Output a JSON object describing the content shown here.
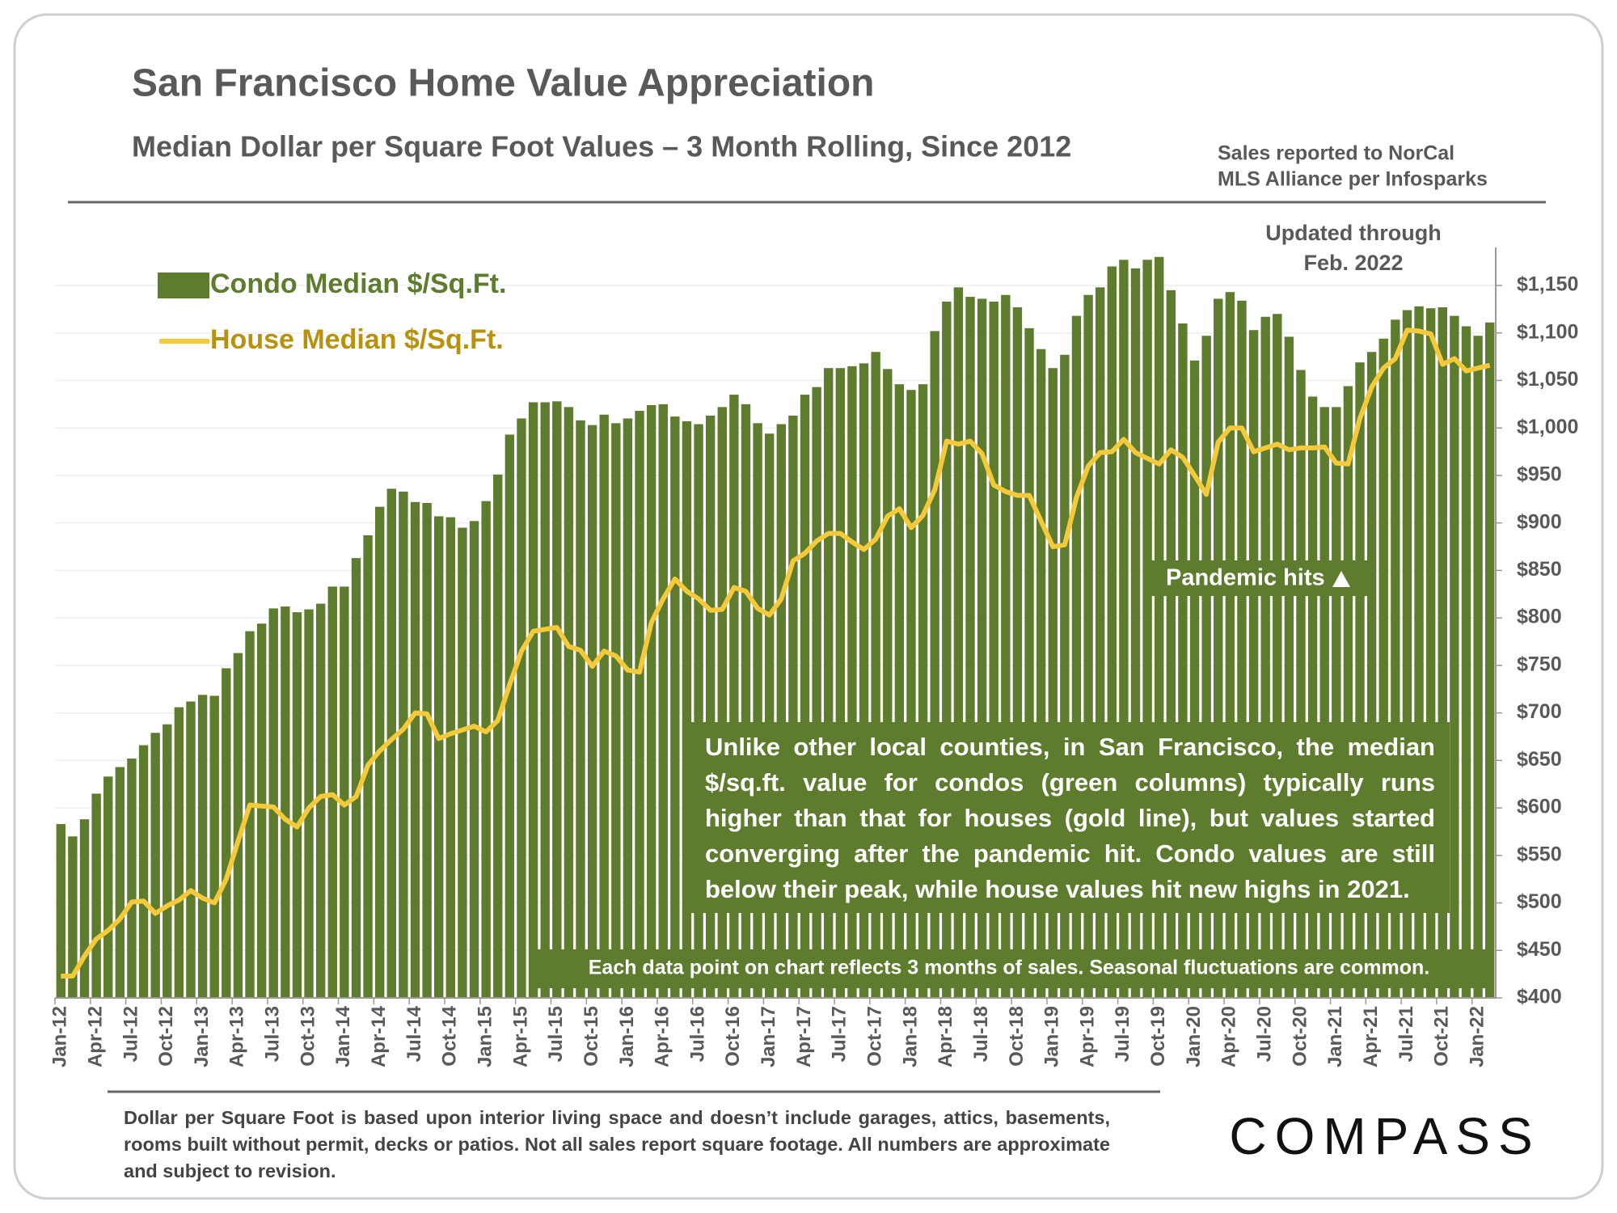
{
  "chart_data": {
    "type": "bar",
    "title": "San Francisco Home Value Appreciation",
    "subtitle": "Median Dollar per Square Foot Values – 3 Month Rolling, Since 2012",
    "source_note": [
      "Sales reported to NorCal",
      "MLS Alliance per Infosparks"
    ],
    "updated_note": [
      "Updated through",
      "Feb. 2022"
    ],
    "annotations": {
      "pandemic": "Pandemic hits",
      "explanation": "Unlike other local counties, in San Francisco, the median $/sq.ft. value for condos (green columns) typically runs higher than that for houses (gold line), but values started converging after the pandemic hit. Condo values are still below their peak, while house values hit new highs in 2021.",
      "data_note": "Each data point on chart reflects 3 months of sales. Seasonal fluctuations are common."
    },
    "footnote": "Dollar per Square Foot is based upon interior living space and doesn’t include garages, attics, basements, rooms built without permit, decks or patios. Not all sales report square footage. All numbers are approximate and subject to revision.",
    "brand": "COMPASS",
    "categories": [
      "Jan-12",
      null,
      null,
      "Apr-12",
      null,
      null,
      "Jul-12",
      null,
      null,
      "Oct-12",
      null,
      null,
      "Jan-13",
      null,
      null,
      "Apr-13",
      null,
      null,
      "Jul-13",
      null,
      null,
      "Oct-13",
      null,
      null,
      "Jan-14",
      null,
      null,
      "Apr-14",
      null,
      null,
      "Jul-14",
      null,
      null,
      "Oct-14",
      null,
      null,
      "Jan-15",
      null,
      null,
      "Apr-15",
      null,
      null,
      "Jul-15",
      null,
      null,
      "Oct-15",
      null,
      null,
      "Jan-16",
      null,
      null,
      "Apr-16",
      null,
      null,
      "Jul-16",
      null,
      null,
      "Oct-16",
      null,
      null,
      "Jan-17",
      null,
      null,
      "Apr-17",
      null,
      null,
      "Jul-17",
      null,
      null,
      "Oct-17",
      null,
      null,
      "Jan-18",
      null,
      null,
      "Apr-18",
      null,
      null,
      "Jul-18",
      null,
      null,
      "Oct-18",
      null,
      null,
      "Jan-19",
      null,
      null,
      "Apr-19",
      null,
      null,
      "Jul-19",
      null,
      null,
      "Oct-19",
      null,
      null,
      "Jan-20",
      null,
      null,
      "Apr-20",
      null,
      null,
      "Jul-20",
      null,
      null,
      "Oct-20",
      null,
      null,
      "Jan-21",
      null,
      null,
      "Apr-21",
      null,
      null,
      "Jul-21",
      null,
      null,
      "Oct-21",
      null,
      null,
      "Jan-22",
      null
    ],
    "series": [
      {
        "name": "Condo Median $/Sq.Ft.",
        "type": "bar",
        "color": "#5d7c2d",
        "values": [
          583,
          570,
          588,
          615,
          633,
          643,
          652,
          666,
          679,
          688,
          706,
          712,
          719,
          718,
          747,
          763,
          786,
          794,
          810,
          812,
          806,
          809,
          815,
          833,
          833,
          863,
          887,
          917,
          936,
          933,
          922,
          921,
          907,
          906,
          895,
          902,
          923,
          951,
          993,
          1010,
          1027,
          1027,
          1028,
          1022,
          1008,
          1003,
          1014,
          1005,
          1010,
          1018,
          1024,
          1025,
          1012,
          1007,
          1004,
          1013,
          1022,
          1035,
          1025,
          1005,
          994,
          1004,
          1013,
          1035,
          1043,
          1063,
          1063,
          1065,
          1068,
          1080,
          1062,
          1046,
          1040,
          1046,
          1102,
          1133,
          1148,
          1138,
          1136,
          1133,
          1140,
          1127,
          1105,
          1083,
          1063,
          1077,
          1118,
          1140,
          1148,
          1170,
          1177,
          1168,
          1177,
          1180,
          1145,
          1110,
          1071,
          1097,
          1136,
          1143,
          1134,
          1103,
          1117,
          1120,
          1096,
          1061,
          1033,
          1022,
          1022,
          1044,
          1069,
          1080,
          1094,
          1114,
          1124,
          1128,
          1126,
          1127,
          1118,
          1107,
          1097,
          1111
        ]
      },
      {
        "name": "House Median $/Sq.Ft.",
        "type": "line",
        "color": "#f5c93c",
        "values": [
          423,
          423,
          444,
          462,
          471,
          483,
          501,
          502,
          489,
          497,
          503,
          513,
          505,
          500,
          525,
          565,
          603,
          602,
          601,
          588,
          580,
          600,
          612,
          614,
          603,
          612,
          645,
          660,
          672,
          683,
          700,
          699,
          673,
          678,
          682,
          686,
          680,
          692,
          730,
          765,
          786,
          788,
          790,
          770,
          766,
          749,
          765,
          760,
          745,
          743,
          795,
          820,
          841,
          828,
          820,
          808,
          809,
          832,
          828,
          810,
          803,
          820,
          860,
          868,
          881,
          889,
          889,
          880,
          872,
          883,
          907,
          915,
          895,
          908,
          935,
          986,
          983,
          986,
          973,
          940,
          933,
          929,
          929,
          902,
          875,
          877,
          927,
          960,
          974,
          975,
          988,
          974,
          968,
          962,
          977,
          969,
          950,
          930,
          985,
          1000,
          1000,
          975,
          979,
          983,
          977,
          979,
          979,
          980,
          963,
          962,
          1010,
          1043,
          1063,
          1073,
          1103,
          1102,
          1099,
          1067,
          1073,
          1060,
          1063,
          1066
        ]
      }
    ],
    "ylim": [
      400,
      1190
    ],
    "yticks": [
      {
        "value": 400,
        "label": "$400"
      },
      {
        "value": 450,
        "label": "$450"
      },
      {
        "value": 500,
        "label": "$500"
      },
      {
        "value": 550,
        "label": "$550"
      },
      {
        "value": 600,
        "label": "$600"
      },
      {
        "value": 650,
        "label": "$650"
      },
      {
        "value": 700,
        "label": "$700"
      },
      {
        "value": 750,
        "label": "$750"
      },
      {
        "value": 800,
        "label": "$800"
      },
      {
        "value": 850,
        "label": "$850"
      },
      {
        "value": 900,
        "label": "$900"
      },
      {
        "value": 950,
        "label": "$950"
      },
      {
        "value": 1000,
        "label": "$1,000"
      },
      {
        "value": 1050,
        "label": "$1,050"
      },
      {
        "value": 1100,
        "label": "$1,100"
      },
      {
        "value": 1150,
        "label": "$1,150"
      }
    ],
    "grid": true
  }
}
